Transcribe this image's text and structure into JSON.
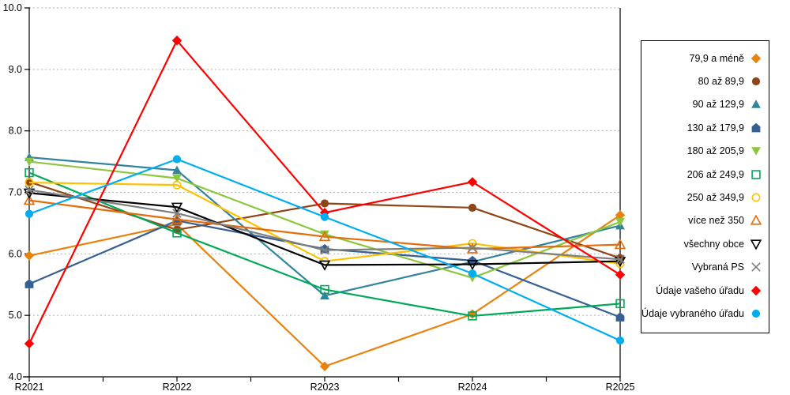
{
  "chart_data": {
    "type": "line",
    "title": "",
    "xlabel": "",
    "ylabel": "",
    "x_categories": [
      "R2021",
      "R2022",
      "R2023",
      "R2024",
      "R2025"
    ],
    "ylim": [
      4.0,
      10.0
    ],
    "y_ticks": [
      "10.0",
      "9.0",
      "8.0",
      "7.0",
      "6.0",
      "5.0",
      "4.0"
    ],
    "grid": "horizontal dashed gray",
    "legend_position": "right",
    "axis_color": "#000000",
    "gridline_color": "#b3b3b3",
    "series": [
      {
        "name": "79,9 a méně",
        "marker": "diamond",
        "fill": "solid",
        "color": "#E8820D",
        "values": [
          5.97,
          6.48,
          4.17,
          5.02,
          6.63
        ]
      },
      {
        "name": "80 až 89,9",
        "marker": "circle",
        "fill": "solid",
        "color": "#8F4516",
        "values": [
          7.17,
          6.39,
          6.82,
          6.75,
          5.93
        ]
      },
      {
        "name": "90 až 129,9",
        "marker": "triangle-up",
        "fill": "solid",
        "color": "#31849B",
        "values": [
          7.57,
          7.36,
          5.32,
          5.87,
          6.46
        ]
      },
      {
        "name": "130 až 179,9",
        "marker": "pentagon",
        "fill": "solid",
        "color": "#366092",
        "values": [
          5.51,
          6.54,
          6.08,
          5.89,
          4.97
        ]
      },
      {
        "name": "180 až 205,9",
        "marker": "triangle-down",
        "fill": "solid",
        "color": "#8DC63F",
        "values": [
          7.5,
          7.23,
          6.32,
          5.61,
          6.52
        ]
      },
      {
        "name": "206 až 249,9",
        "marker": "square",
        "fill": "hollow",
        "color": "#00A859",
        "values": [
          7.32,
          6.34,
          5.42,
          4.99,
          5.19
        ]
      },
      {
        "name": "250 až 349,9",
        "marker": "circle",
        "fill": "hollow",
        "color": "#FFC000",
        "values": [
          7.16,
          7.12,
          5.88,
          6.17,
          5.84
        ]
      },
      {
        "name": "více než 350",
        "marker": "triangle-up",
        "fill": "hollow",
        "color": "#E46C0A",
        "values": [
          6.87,
          6.56,
          6.28,
          6.08,
          6.15
        ]
      },
      {
        "name": "všechny obce",
        "marker": "triangle-down",
        "fill": "hollow",
        "color": "#000000",
        "values": [
          6.99,
          6.76,
          5.82,
          5.83,
          5.88
        ]
      },
      {
        "name": "Vybraná PS",
        "marker": "x",
        "fill": "hollow",
        "color": "#7F7F7F",
        "values": [
          7.04,
          6.66,
          6.06,
          6.1,
          5.91
        ]
      },
      {
        "name": "Údaje vašeho úřadu",
        "marker": "diamond",
        "fill": "solid",
        "color": "#FE0000",
        "values": [
          4.54,
          9.47,
          6.67,
          7.17,
          5.66
        ]
      },
      {
        "name": "Údaje vybraného úřadu",
        "marker": "circle",
        "fill": "solid",
        "color": "#00AEEF",
        "values": [
          6.65,
          7.54,
          6.6,
          5.68,
          4.59
        ]
      }
    ]
  }
}
